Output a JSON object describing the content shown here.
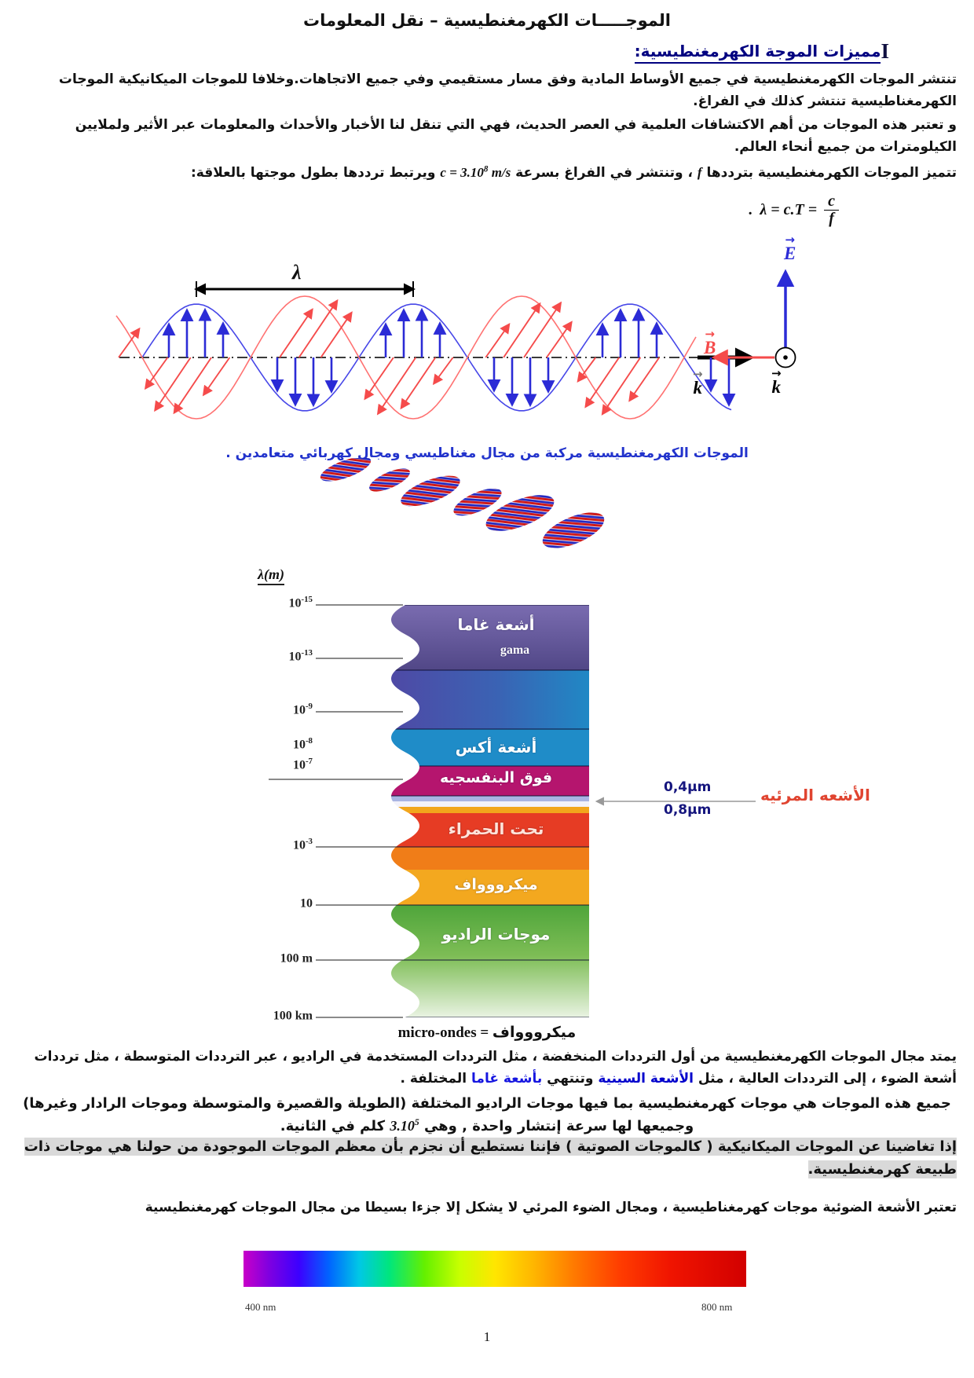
{
  "page": {
    "title": "الموجـــــات الكهرمغنطيسية – نقل المعلومات",
    "page_number": "1"
  },
  "section": {
    "numeral": "I",
    "heading": "مميزات الموجة الكهرمغنطيسية:"
  },
  "paragraphs": {
    "p1": "تنتشر الموجات الكهرمغنطيسية في جميع الأوساط المادية وفق مسار مستقيمي وفي جميع الاتجاهات.وخلافا للموجات الميكانيكية الموجات الكهرمغناطيسية تنتشر كذلك في الفراغ.",
    "p2": "و تعتبر هذه الموجات من أهم الاكتشافات العلمية في العصر الحديث، فهي التي تنقل لنا الأخبار والأحداث والمعلومات عبر الأثير ولملايين الكيلومترات من جميع أنحاء العالم.",
    "p3_before": "تتميز الموجات الكهرمغنطيسية بترددها ",
    "p3_f": "f",
    "p3_mid": " ، وتنتشر في الفراغ بسرعة ",
    "p3_speed_base": "c = 3.10",
    "p3_speed_exp": "8",
    "p3_speed_unit": " m/s",
    "p3_after": " ويرتبط ترددها بطول موجتها بالعلاقة:",
    "p4a": "يمتد مجال الموجات الكهرمغنطيسية من أول الترددات المنخفضة ، مثل الترددات المستخدمة في الراديو ، عبر الترددات المتوسطة ، مثل ترددات أشعة الضوء ، إلى الترددات العالية ، مثل ",
    "p4_blue1": "الأشعة السينية",
    "p4b": " وتنتهي  ",
    "p4_blue2": "بأشعة غاما",
    "p4c": " المختلفة .",
    "p5a": "جميع هذه الموجات هي موجات كهرمغنطيسية بما فيها موجات الراديو المختلفة (الطويلة والقصيرة والمتوسطة وموجات الرادار وغيرها) وجميعها لها سرعة إنتشار واحدة , وهي ",
    "p5_speed_base": "3.10",
    "p5_exp": "5",
    "p5b": " كلم في الثانية.",
    "p6": "إذا تغاضينا عن الموجات الميكانيكية ( كالموجات الصوتية ) فإننا نستطيع أن نجزم بأن معظم الموجات الموجودة من حولنا هي موجات ذات طبيعة كهرمغنطيسية.",
    "p7": "تعتبر الأشعة الضوئية موجات كهرمغناطيسية ، ومجال الضوء المرئي لا يشكل إلا جزءا بسيطا من مجال الموجات كهرمغنطيسية"
  },
  "formula": {
    "dot": ".",
    "lhs": "λ = c.T =",
    "num": "c",
    "den": "f"
  },
  "wave_diagram": {
    "lambda_label": "λ",
    "k_label": "k",
    "E_label": "E",
    "B_label": "B",
    "arrow_glyph": "→"
  },
  "caption": "الموجات الكهرمغنطيسية مركبة من مجال مغناطيسي ومجال كهربائي متعامدين .",
  "spectrum": {
    "axis_label": "λ(m)",
    "ticks": [
      {
        "base": "10",
        "exp": "-15"
      },
      {
        "base": "10",
        "exp": "-13"
      },
      {
        "base": "10",
        "exp": "-9"
      },
      {
        "base": "10",
        "exp": "-8"
      },
      {
        "base": "10",
        "exp": "-7"
      },
      {
        "base": "10",
        "exp": "-3"
      },
      {
        "base": "10",
        "exp": ""
      },
      {
        "base": "100 m",
        "exp": ""
      },
      {
        "base": "100 km",
        "exp": ""
      }
    ],
    "bands": [
      {
        "label": "أشعة غاما",
        "latin": "gama",
        "color": "#5f53a0"
      },
      {
        "label": "أشعة أكس",
        "color": "#1f8cc8"
      },
      {
        "label": "فوق البنفسجيه",
        "color": "#b5156e"
      },
      {
        "label": "تحت الحمراء",
        "color": "#e63c24"
      },
      {
        "label": "ميكرووواف",
        "color": "#f3a81f"
      },
      {
        "label": "موجات الراديو",
        "color": "#4fa53b"
      }
    ],
    "visible": {
      "upper": "0,4μm",
      "lower": "0,8μm",
      "label": "الأشعه المرئيه"
    }
  },
  "micro_equivalence": {
    "latin": "micro-ondes",
    "eq": " = ",
    "arabic": "ميكرووواف"
  },
  "visible_bar": {
    "left_label": "400 nm",
    "right_label": "800 nm"
  },
  "colors": {
    "heading_navy": "#000080",
    "caption_blue": "#2233cc",
    "link_blue": "#0000cc",
    "visible_label_red": "#e04430",
    "gray_highlight": "#d9d9d9",
    "e_field_blue": "#2b2bd6",
    "b_field_red": "#f54b4b"
  }
}
